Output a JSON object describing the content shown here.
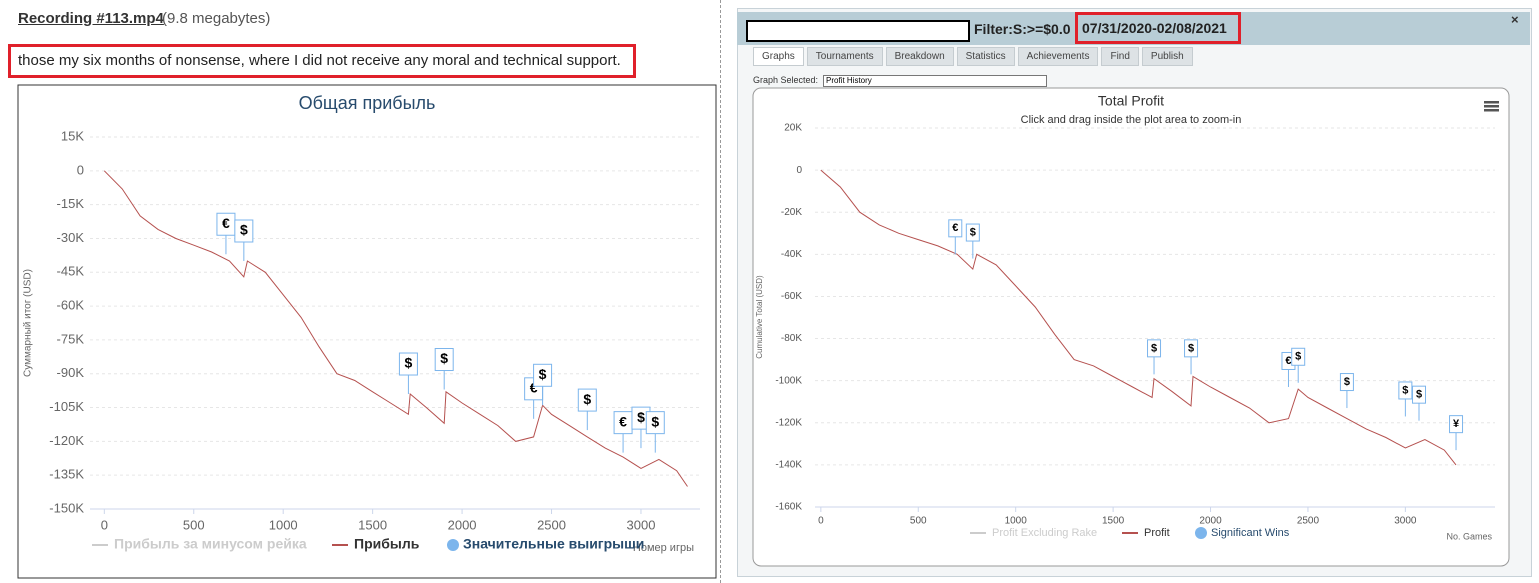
{
  "post": {
    "link": "Recording #113.mp4",
    "size": "(9.8 megabytes)",
    "comment": "those my six months of nonsense, where I did not receive any moral and technical support."
  },
  "window": {
    "filter": "Filter:S:>=$0.0",
    "dates": "07/31/2020-02/08/2021",
    "close": "×",
    "tabs": [
      "Graphs",
      "Tournaments",
      "Breakdown",
      "Statistics",
      "Achievements",
      "Find",
      "Publish"
    ],
    "graph_selected_label": "Graph Selected:",
    "graph_selected": "Profit History"
  },
  "chart_data": [
    {
      "type": "line",
      "title": "Общая прибыль",
      "x_label": "Номер игры",
      "y_label": "Суммарный итог (USD)",
      "x": [
        0,
        100,
        200,
        300,
        400,
        500,
        600,
        700,
        780,
        800,
        900,
        1000,
        1100,
        1200,
        1300,
        1400,
        1500,
        1600,
        1700,
        1710,
        1800,
        1900,
        1910,
        2000,
        2100,
        2200,
        2300,
        2400,
        2450,
        2500,
        2600,
        2700,
        2800,
        2900,
        3000,
        3100,
        3200,
        3260
      ],
      "series": [
        {
          "name": "Прибыль за минусом рейка",
          "color": "#cccccc",
          "visible": false
        },
        {
          "name": "Прибыль",
          "color": "#b5514f",
          "values": [
            0,
            -8000,
            -20000,
            -26000,
            -30000,
            -33000,
            -36000,
            -40000,
            -47000,
            -40000,
            -45000,
            -55000,
            -65000,
            -78000,
            -90000,
            -93000,
            -98000,
            -103000,
            -108000,
            -99000,
            -105000,
            -112000,
            -98000,
            -103000,
            -108000,
            -113000,
            -120000,
            -118000,
            -104000,
            -108000,
            -113000,
            -118000,
            -123000,
            -127000,
            -132000,
            -128000,
            -133000,
            -140000
          ]
        }
      ],
      "markers": {
        "name": "Значительные выигрыши",
        "color": "#7cb5ec",
        "x": [
          680,
          780,
          1700,
          1900,
          2400,
          2450,
          2700,
          2900,
          3000,
          3080
        ],
        "values": [
          -37000,
          -40000,
          -99000,
          -97000,
          -110000,
          -104000,
          -115000,
          -125000,
          -123000,
          -125000
        ],
        "labels": [
          "€",
          "$",
          "$",
          "$",
          "€",
          "$",
          "$",
          "€",
          "$",
          "$"
        ]
      },
      "xlim": [
        -80,
        3330
      ],
      "xticks": [
        0,
        500,
        1000,
        1500,
        2000,
        2500,
        3000
      ],
      "ylim": [
        -150000,
        15000
      ],
      "yticks": [
        {
          "value": 15000,
          "label": "15K"
        },
        0,
        {
          "value": -15000,
          "label": "-15K"
        },
        {
          "value": -30000,
          "label": "-30K"
        },
        {
          "value": -45000,
          "label": "-45K"
        },
        {
          "value": -60000,
          "label": "-60K"
        },
        {
          "value": -75000,
          "label": "-75K"
        },
        {
          "value": -90000,
          "label": "-90K"
        },
        {
          "value": -105000,
          "label": "-105K"
        },
        {
          "value": -120000,
          "label": "-120K"
        },
        {
          "value": -135000,
          "label": "-135K"
        },
        {
          "value": -150000,
          "label": "-150K"
        }
      ],
      "grid": true
    },
    {
      "type": "line",
      "title": "Total Profit",
      "subtitle": "Click and drag inside the plot area to zoom-in",
      "x_label": "No. Games",
      "y_label": "Cumulative Total (USD)",
      "x": [
        0,
        100,
        200,
        300,
        400,
        500,
        600,
        700,
        780,
        800,
        900,
        1000,
        1100,
        1200,
        1300,
        1400,
        1500,
        1600,
        1700,
        1710,
        1800,
        1900,
        1910,
        2000,
        2100,
        2200,
        2300,
        2400,
        2450,
        2500,
        2600,
        2700,
        2800,
        2900,
        3000,
        3100,
        3200,
        3260
      ],
      "series": [
        {
          "name": "Profit Excluding Rake",
          "color": "#cccccc",
          "visible": false
        },
        {
          "name": "Profit",
          "color": "#b5514f",
          "values": [
            0,
            -8000,
            -20000,
            -26000,
            -30000,
            -33000,
            -36000,
            -40000,
            -47000,
            -40000,
            -45000,
            -55000,
            -65000,
            -78000,
            -90000,
            -93000,
            -98000,
            -103000,
            -108000,
            -99000,
            -105000,
            -112000,
            -98000,
            -103000,
            -108000,
            -113000,
            -120000,
            -118000,
            -104000,
            -108000,
            -113000,
            -118000,
            -123000,
            -127000,
            -132000,
            -128000,
            -133000,
            -140000
          ]
        }
      ],
      "markers": {
        "name": "Significant Wins",
        "color": "#7cb5ec",
        "x": [
          690,
          780,
          1710,
          1900,
          2400,
          2450,
          2700,
          3000,
          3070,
          3260
        ],
        "values": [
          -40000,
          -42000,
          -97000,
          -97000,
          -103000,
          -101000,
          -113000,
          -117000,
          -119000,
          -133000
        ],
        "labels": [
          "€",
          "$",
          "$",
          "$",
          "€",
          "$",
          "$",
          "$",
          "$",
          "¥"
        ]
      },
      "xlim": [
        -30,
        3460
      ],
      "xticks": [
        0,
        500,
        1000,
        1500,
        2000,
        2500,
        3000
      ],
      "ylim": [
        -160000,
        20000
      ],
      "yticks": [
        {
          "value": 20000,
          "label": "20K"
        },
        0,
        {
          "value": -20000,
          "label": "-20K"
        },
        {
          "value": -40000,
          "label": "-40K"
        },
        {
          "value": -60000,
          "label": "-60K"
        },
        {
          "value": -80000,
          "label": "-80K"
        },
        {
          "value": -100000,
          "label": "-100K"
        },
        {
          "value": -120000,
          "label": "-120K"
        },
        {
          "value": -140000,
          "label": "-140K"
        },
        {
          "value": -160000,
          "label": "-160K"
        }
      ],
      "grid": true
    }
  ]
}
